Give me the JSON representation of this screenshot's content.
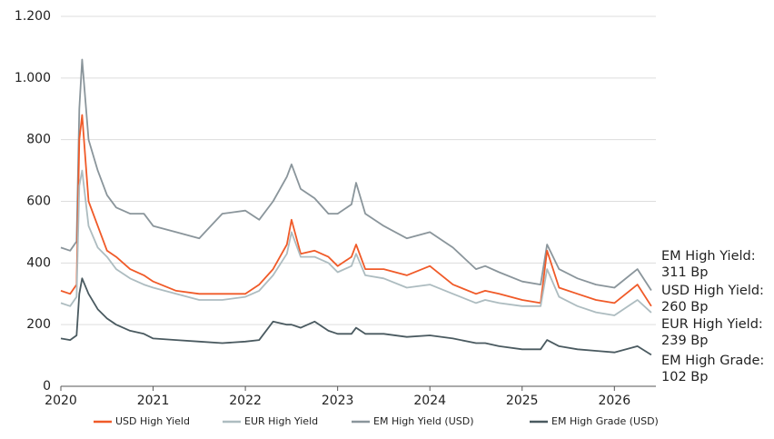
{
  "chart_data": {
    "type": "line",
    "x": [
      2020.0,
      2020.1,
      2020.17,
      2020.2,
      2020.23,
      2020.3,
      2020.4,
      2020.5,
      2020.6,
      2020.75,
      2020.9,
      2021.0,
      2021.25,
      2021.5,
      2021.75,
      2022.0,
      2022.15,
      2022.3,
      2022.45,
      2022.5,
      2022.6,
      2022.75,
      2022.9,
      2023.0,
      2023.15,
      2023.2,
      2023.3,
      2023.5,
      2023.75,
      2024.0,
      2024.25,
      2024.5,
      2024.6,
      2024.75,
      2025.0,
      2025.2,
      2025.27,
      2025.4,
      2025.6,
      2025.8,
      2026.0,
      2026.25,
      2026.4
    ],
    "series": [
      {
        "name": "USD High Yield",
        "color": "#f05a28",
        "end_label": [
          "USD High Yield:",
          "260 Bp"
        ],
        "values": [
          310,
          300,
          330,
          800,
          880,
          600,
          520,
          440,
          420,
          380,
          360,
          340,
          310,
          300,
          300,
          300,
          330,
          380,
          460,
          540,
          430,
          440,
          420,
          390,
          420,
          460,
          380,
          380,
          360,
          390,
          330,
          300,
          310,
          300,
          280,
          270,
          440,
          320,
          300,
          280,
          270,
          330,
          260
        ]
      },
      {
        "name": "EUR High Yield",
        "color": "#adbcc0",
        "end_label": [
          "EUR High Yield:",
          "239 Bp"
        ],
        "values": [
          270,
          260,
          290,
          650,
          700,
          520,
          450,
          420,
          380,
          350,
          330,
          320,
          300,
          280,
          280,
          290,
          310,
          360,
          430,
          500,
          420,
          420,
          400,
          370,
          390,
          430,
          360,
          350,
          320,
          330,
          300,
          270,
          280,
          270,
          260,
          260,
          380,
          290,
          260,
          240,
          230,
          280,
          239
        ]
      },
      {
        "name": "EM High Yield (USD)",
        "color": "#8a959b",
        "end_label": [
          "EM High Yield:",
          "311 Bp"
        ],
        "values": [
          450,
          440,
          470,
          900,
          1060,
          800,
          700,
          620,
          580,
          560,
          560,
          520,
          500,
          480,
          560,
          570,
          540,
          600,
          680,
          720,
          640,
          610,
          560,
          560,
          590,
          660,
          560,
          520,
          480,
          500,
          450,
          380,
          390,
          370,
          340,
          330,
          460,
          380,
          350,
          330,
          320,
          380,
          311
        ]
      },
      {
        "name": "EM High Grade (USD)",
        "color": "#4a5a60",
        "end_label": [
          "EM High Grade:",
          "102 Bp"
        ],
        "values": [
          155,
          150,
          165,
          300,
          350,
          300,
          250,
          220,
          200,
          180,
          170,
          155,
          150,
          145,
          140,
          145,
          150,
          210,
          200,
          200,
          190,
          210,
          180,
          170,
          170,
          190,
          170,
          170,
          160,
          165,
          155,
          140,
          140,
          130,
          120,
          120,
          150,
          130,
          120,
          115,
          110,
          130,
          102
        ]
      }
    ],
    "xlim": [
      2020,
      2026.45
    ],
    "xticks": [
      2020,
      2021,
      2022,
      2023,
      2024,
      2025,
      2026
    ],
    "ylim": [
      0,
      1200
    ],
    "yticks": [
      0,
      200,
      400,
      600,
      800,
      {
        "value": 1000,
        "label": "1.000"
      },
      {
        "value": 1200,
        "label": "1.200"
      }
    ],
    "grid": true
  }
}
